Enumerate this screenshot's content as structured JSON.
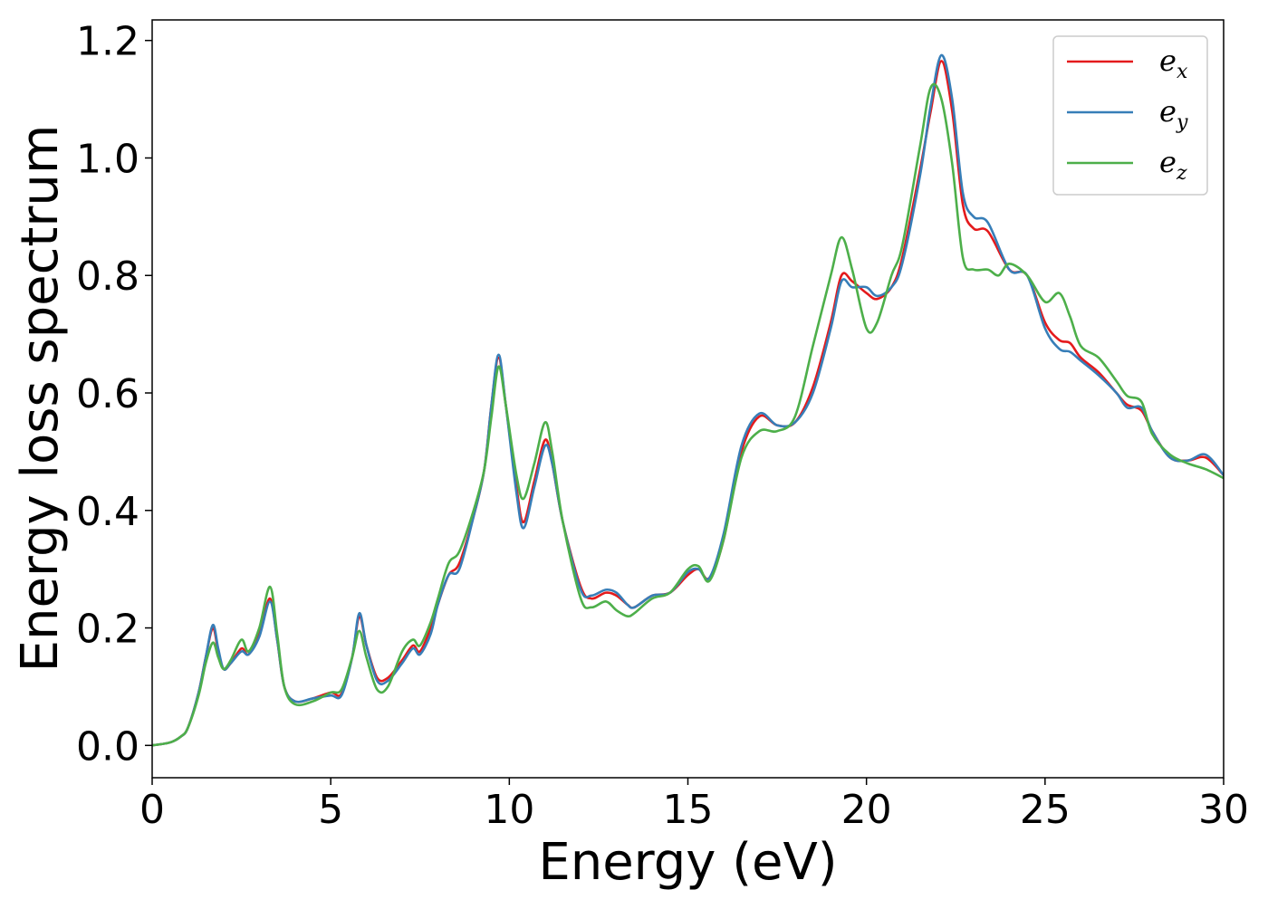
{
  "chart_data": {
    "type": "line",
    "title": "",
    "xlabel": "Energy (eV)",
    "ylabel": "Energy loss spectrum",
    "xlim": [
      0,
      30
    ],
    "ylim": [
      -0.055,
      1.235
    ],
    "xticks": [
      0,
      5,
      10,
      15,
      20,
      25,
      30
    ],
    "xtick_labels": [
      "0",
      "5",
      "10",
      "15",
      "20",
      "25",
      "30"
    ],
    "yticks": [
      0.0,
      0.2,
      0.4,
      0.6,
      0.8,
      1.0,
      1.2
    ],
    "ytick_labels": [
      "0.0",
      "0.2",
      "0.4",
      "0.6",
      "0.8",
      "1.0",
      "1.2"
    ],
    "grid": false,
    "legend": "top-right",
    "series": [
      {
        "name": "e_x",
        "legend_base": "e",
        "legend_sub": "x",
        "color": "#e41a1c",
        "points": [
          [
            0,
            0
          ],
          [
            0.5,
            0.005
          ],
          [
            0.8,
            0.015
          ],
          [
            1.0,
            0.03
          ],
          [
            1.3,
            0.09
          ],
          [
            1.5,
            0.15
          ],
          [
            1.7,
            0.2
          ],
          [
            1.85,
            0.16
          ],
          [
            2.0,
            0.13
          ],
          [
            2.2,
            0.14
          ],
          [
            2.5,
            0.165
          ],
          [
            2.7,
            0.155
          ],
          [
            3.0,
            0.19
          ],
          [
            3.3,
            0.25
          ],
          [
            3.5,
            0.18
          ],
          [
            3.7,
            0.1
          ],
          [
            4.0,
            0.075
          ],
          [
            4.5,
            0.08
          ],
          [
            5.0,
            0.09
          ],
          [
            5.3,
            0.088
          ],
          [
            5.6,
            0.15
          ],
          [
            5.8,
            0.22
          ],
          [
            6.0,
            0.17
          ],
          [
            6.3,
            0.115
          ],
          [
            6.6,
            0.115
          ],
          [
            7.0,
            0.145
          ],
          [
            7.3,
            0.17
          ],
          [
            7.5,
            0.16
          ],
          [
            7.8,
            0.2
          ],
          [
            8.0,
            0.24
          ],
          [
            8.3,
            0.29
          ],
          [
            8.6,
            0.31
          ],
          [
            9.0,
            0.39
          ],
          [
            9.3,
            0.47
          ],
          [
            9.5,
            0.58
          ],
          [
            9.7,
            0.66
          ],
          [
            9.9,
            0.58
          ],
          [
            10.2,
            0.44
          ],
          [
            10.4,
            0.38
          ],
          [
            10.7,
            0.45
          ],
          [
            11.0,
            0.52
          ],
          [
            11.2,
            0.48
          ],
          [
            11.5,
            0.38
          ],
          [
            12.0,
            0.27
          ],
          [
            12.3,
            0.25
          ],
          [
            12.7,
            0.26
          ],
          [
            13.0,
            0.255
          ],
          [
            13.3,
            0.24
          ],
          [
            13.5,
            0.235
          ],
          [
            14.0,
            0.255
          ],
          [
            14.5,
            0.26
          ],
          [
            15.0,
            0.29
          ],
          [
            15.3,
            0.3
          ],
          [
            15.6,
            0.285
          ],
          [
            16.0,
            0.35
          ],
          [
            16.5,
            0.5
          ],
          [
            17.0,
            0.56
          ],
          [
            17.5,
            0.545
          ],
          [
            18.0,
            0.55
          ],
          [
            18.5,
            0.61
          ],
          [
            19.0,
            0.72
          ],
          [
            19.3,
            0.8
          ],
          [
            19.6,
            0.79
          ],
          [
            20.0,
            0.77
          ],
          [
            20.3,
            0.76
          ],
          [
            20.7,
            0.78
          ],
          [
            21.0,
            0.83
          ],
          [
            21.5,
            0.98
          ],
          [
            21.8,
            1.08
          ],
          [
            22.1,
            1.165
          ],
          [
            22.4,
            1.08
          ],
          [
            22.7,
            0.92
          ],
          [
            23.0,
            0.88
          ],
          [
            23.4,
            0.875
          ],
          [
            24.0,
            0.81
          ],
          [
            24.5,
            0.8
          ],
          [
            25.0,
            0.72
          ],
          [
            25.4,
            0.69
          ],
          [
            25.7,
            0.685
          ],
          [
            26.0,
            0.66
          ],
          [
            26.5,
            0.635
          ],
          [
            27.0,
            0.6
          ],
          [
            27.3,
            0.58
          ],
          [
            27.7,
            0.57
          ],
          [
            28.0,
            0.535
          ],
          [
            28.5,
            0.49
          ],
          [
            29.0,
            0.485
          ],
          [
            29.5,
            0.49
          ],
          [
            30.0,
            0.46
          ]
        ]
      },
      {
        "name": "e_y",
        "legend_base": "e",
        "legend_sub": "y",
        "color": "#377eb8",
        "points": [
          [
            0,
            0
          ],
          [
            0.5,
            0.005
          ],
          [
            0.8,
            0.015
          ],
          [
            1.0,
            0.03
          ],
          [
            1.3,
            0.09
          ],
          [
            1.5,
            0.15
          ],
          [
            1.7,
            0.205
          ],
          [
            1.85,
            0.165
          ],
          [
            2.0,
            0.13
          ],
          [
            2.2,
            0.14
          ],
          [
            2.5,
            0.16
          ],
          [
            2.7,
            0.155
          ],
          [
            3.0,
            0.185
          ],
          [
            3.3,
            0.245
          ],
          [
            3.5,
            0.18
          ],
          [
            3.7,
            0.1
          ],
          [
            4.0,
            0.075
          ],
          [
            4.5,
            0.08
          ],
          [
            5.0,
            0.085
          ],
          [
            5.3,
            0.085
          ],
          [
            5.6,
            0.15
          ],
          [
            5.8,
            0.225
          ],
          [
            6.0,
            0.17
          ],
          [
            6.3,
            0.11
          ],
          [
            6.6,
            0.11
          ],
          [
            7.0,
            0.14
          ],
          [
            7.3,
            0.165
          ],
          [
            7.5,
            0.155
          ],
          [
            7.8,
            0.19
          ],
          [
            8.0,
            0.24
          ],
          [
            8.3,
            0.29
          ],
          [
            8.6,
            0.3
          ],
          [
            9.0,
            0.39
          ],
          [
            9.3,
            0.47
          ],
          [
            9.5,
            0.58
          ],
          [
            9.7,
            0.665
          ],
          [
            9.9,
            0.58
          ],
          [
            10.2,
            0.43
          ],
          [
            10.4,
            0.37
          ],
          [
            10.7,
            0.44
          ],
          [
            11.0,
            0.51
          ],
          [
            11.2,
            0.48
          ],
          [
            11.5,
            0.38
          ],
          [
            12.0,
            0.265
          ],
          [
            12.3,
            0.255
          ],
          [
            12.7,
            0.265
          ],
          [
            13.0,
            0.26
          ],
          [
            13.3,
            0.24
          ],
          [
            13.5,
            0.235
          ],
          [
            14.0,
            0.255
          ],
          [
            14.5,
            0.26
          ],
          [
            15.0,
            0.295
          ],
          [
            15.3,
            0.3
          ],
          [
            15.6,
            0.285
          ],
          [
            16.0,
            0.36
          ],
          [
            16.5,
            0.51
          ],
          [
            17.0,
            0.565
          ],
          [
            17.5,
            0.545
          ],
          [
            18.0,
            0.55
          ],
          [
            18.5,
            0.6
          ],
          [
            19.0,
            0.71
          ],
          [
            19.3,
            0.79
          ],
          [
            19.6,
            0.78
          ],
          [
            20.0,
            0.78
          ],
          [
            20.3,
            0.765
          ],
          [
            20.7,
            0.78
          ],
          [
            21.0,
            0.82
          ],
          [
            21.5,
            0.97
          ],
          [
            21.8,
            1.09
          ],
          [
            22.1,
            1.175
          ],
          [
            22.4,
            1.1
          ],
          [
            22.7,
            0.94
          ],
          [
            23.0,
            0.9
          ],
          [
            23.4,
            0.89
          ],
          [
            24.0,
            0.81
          ],
          [
            24.5,
            0.8
          ],
          [
            25.0,
            0.71
          ],
          [
            25.4,
            0.675
          ],
          [
            25.7,
            0.67
          ],
          [
            26.0,
            0.655
          ],
          [
            26.5,
            0.63
          ],
          [
            27.0,
            0.6
          ],
          [
            27.3,
            0.575
          ],
          [
            27.7,
            0.575
          ],
          [
            28.0,
            0.535
          ],
          [
            28.5,
            0.49
          ],
          [
            29.0,
            0.485
          ],
          [
            29.5,
            0.495
          ],
          [
            30.0,
            0.46
          ]
        ]
      },
      {
        "name": "e_z",
        "legend_base": "e",
        "legend_sub": "z",
        "color": "#4daf4a",
        "points": [
          [
            0,
            0
          ],
          [
            0.5,
            0.005
          ],
          [
            0.8,
            0.015
          ],
          [
            1.0,
            0.03
          ],
          [
            1.3,
            0.085
          ],
          [
            1.5,
            0.14
          ],
          [
            1.7,
            0.175
          ],
          [
            1.85,
            0.15
          ],
          [
            2.0,
            0.13
          ],
          [
            2.2,
            0.145
          ],
          [
            2.5,
            0.18
          ],
          [
            2.7,
            0.16
          ],
          [
            3.0,
            0.2
          ],
          [
            3.3,
            0.27
          ],
          [
            3.5,
            0.19
          ],
          [
            3.7,
            0.1
          ],
          [
            4.0,
            0.07
          ],
          [
            4.5,
            0.075
          ],
          [
            5.0,
            0.09
          ],
          [
            5.3,
            0.095
          ],
          [
            5.6,
            0.15
          ],
          [
            5.8,
            0.195
          ],
          [
            6.0,
            0.15
          ],
          [
            6.3,
            0.095
          ],
          [
            6.6,
            0.1
          ],
          [
            7.0,
            0.16
          ],
          [
            7.3,
            0.18
          ],
          [
            7.5,
            0.17
          ],
          [
            7.8,
            0.21
          ],
          [
            8.0,
            0.25
          ],
          [
            8.3,
            0.31
          ],
          [
            8.6,
            0.33
          ],
          [
            9.0,
            0.4
          ],
          [
            9.3,
            0.47
          ],
          [
            9.5,
            0.56
          ],
          [
            9.7,
            0.645
          ],
          [
            9.9,
            0.58
          ],
          [
            10.2,
            0.46
          ],
          [
            10.4,
            0.42
          ],
          [
            10.7,
            0.48
          ],
          [
            11.0,
            0.55
          ],
          [
            11.2,
            0.5
          ],
          [
            11.5,
            0.38
          ],
          [
            12.0,
            0.25
          ],
          [
            12.3,
            0.235
          ],
          [
            12.7,
            0.245
          ],
          [
            13.0,
            0.23
          ],
          [
            13.3,
            0.22
          ],
          [
            13.5,
            0.225
          ],
          [
            14.0,
            0.25
          ],
          [
            14.5,
            0.26
          ],
          [
            15.0,
            0.3
          ],
          [
            15.3,
            0.305
          ],
          [
            15.6,
            0.28
          ],
          [
            16.0,
            0.35
          ],
          [
            16.5,
            0.49
          ],
          [
            17.0,
            0.535
          ],
          [
            17.5,
            0.535
          ],
          [
            18.0,
            0.56
          ],
          [
            18.5,
            0.68
          ],
          [
            19.0,
            0.8
          ],
          [
            19.3,
            0.865
          ],
          [
            19.6,
            0.81
          ],
          [
            20.0,
            0.71
          ],
          [
            20.3,
            0.72
          ],
          [
            20.7,
            0.8
          ],
          [
            21.0,
            0.85
          ],
          [
            21.5,
            1.02
          ],
          [
            21.8,
            1.12
          ],
          [
            22.1,
            1.1
          ],
          [
            22.4,
            0.99
          ],
          [
            22.7,
            0.83
          ],
          [
            23.0,
            0.81
          ],
          [
            23.4,
            0.81
          ],
          [
            23.7,
            0.8
          ],
          [
            24.0,
            0.82
          ],
          [
            24.5,
            0.8
          ],
          [
            25.0,
            0.755
          ],
          [
            25.4,
            0.77
          ],
          [
            25.7,
            0.73
          ],
          [
            26.0,
            0.68
          ],
          [
            26.5,
            0.66
          ],
          [
            27.0,
            0.62
          ],
          [
            27.3,
            0.595
          ],
          [
            27.7,
            0.585
          ],
          [
            28.0,
            0.53
          ],
          [
            28.5,
            0.495
          ],
          [
            29.0,
            0.48
          ],
          [
            29.5,
            0.47
          ],
          [
            30.0,
            0.455
          ]
        ]
      }
    ]
  }
}
